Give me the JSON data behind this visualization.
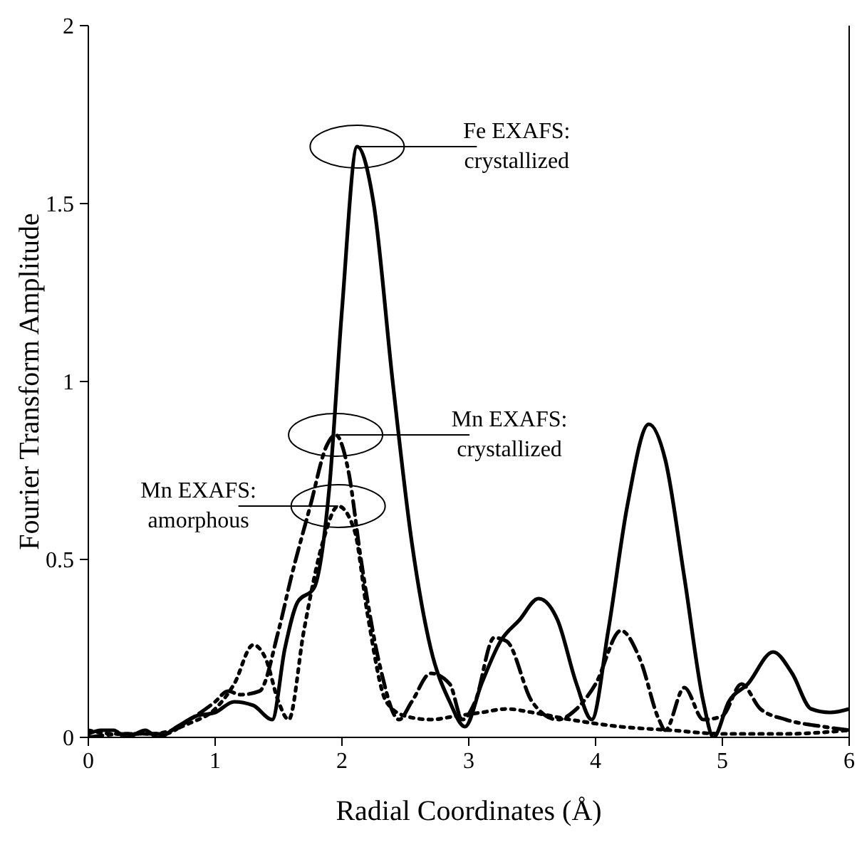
{
  "chart_data": {
    "type": "line",
    "xlabel": "Radial Coordinates (Å)",
    "ylabel": "Fourier Transform Amplitude",
    "xlim": [
      0,
      6
    ],
    "xticks": [
      0,
      1,
      2,
      3,
      4,
      5,
      6
    ],
    "ylim": [
      0,
      2
    ],
    "yticks": [
      0,
      0.5,
      1,
      1.5,
      2
    ],
    "grid": false,
    "legend": false,
    "marker": "none",
    "series": [
      {
        "color": "#000000",
        "line_style": "solid",
        "x": [
          0,
          0.1,
          0.2,
          0.3,
          0.45,
          0.55,
          0.7,
          0.85,
          1.0,
          1.15,
          1.3,
          1.45,
          1.55,
          1.65,
          1.78,
          1.9,
          2.0,
          2.12,
          2.25,
          2.4,
          2.55,
          2.7,
          2.85,
          2.97,
          3.1,
          3.25,
          3.4,
          3.55,
          3.7,
          3.85,
          3.97,
          4.1,
          4.25,
          4.42,
          4.55,
          4.7,
          4.85,
          4.93,
          5.05,
          5.2,
          5.4,
          5.55,
          5.7,
          5.85,
          6.0
        ],
        "values": [
          0.01,
          0.02,
          0.02,
          0.0,
          0.02,
          0.0,
          0.03,
          0.06,
          0.07,
          0.1,
          0.09,
          0.05,
          0.25,
          0.38,
          0.42,
          0.7,
          1.2,
          1.66,
          1.5,
          1.0,
          0.55,
          0.25,
          0.1,
          0.03,
          0.15,
          0.27,
          0.33,
          0.39,
          0.33,
          0.15,
          0.05,
          0.3,
          0.65,
          0.88,
          0.78,
          0.45,
          0.1,
          0.0,
          0.1,
          0.15,
          0.24,
          0.18,
          0.08,
          0.07,
          0.08
        ]
      },
      {
        "color": "#000000",
        "line_style": "dashdot",
        "x": [
          0,
          0.3,
          0.6,
          0.8,
          1.0,
          1.1,
          1.2,
          1.35,
          1.5,
          1.6,
          1.75,
          1.88,
          1.95,
          2.05,
          2.15,
          2.3,
          2.45,
          2.55,
          2.7,
          2.85,
          2.95,
          3.05,
          3.2,
          3.3,
          3.5,
          3.7,
          3.85,
          4.0,
          4.2,
          4.35,
          4.5,
          4.55,
          4.7,
          4.85,
          5.0,
          5.15,
          5.3,
          5.5,
          5.8,
          6.0
        ],
        "values": [
          0.0,
          0.01,
          0.01,
          0.05,
          0.1,
          0.13,
          0.12,
          0.13,
          0.3,
          0.45,
          0.65,
          0.82,
          0.85,
          0.75,
          0.5,
          0.2,
          0.05,
          0.1,
          0.18,
          0.15,
          0.05,
          0.1,
          0.28,
          0.27,
          0.1,
          0.05,
          0.08,
          0.15,
          0.3,
          0.22,
          0.05,
          0.02,
          0.14,
          0.05,
          0.06,
          0.15,
          0.08,
          0.05,
          0.03,
          0.02
        ]
      },
      {
        "color": "#000000",
        "line_style": "dotted",
        "x": [
          0,
          0.2,
          0.5,
          0.8,
          1.0,
          1.15,
          1.3,
          1.4,
          1.5,
          1.58,
          1.7,
          1.85,
          1.97,
          2.1,
          2.2,
          2.35,
          2.5,
          2.7,
          2.9,
          3.1,
          3.3,
          3.5,
          3.8,
          4.2,
          4.6,
          5.0,
          5.5,
          6.0
        ],
        "values": [
          0.02,
          0.01,
          0.01,
          0.04,
          0.08,
          0.15,
          0.26,
          0.22,
          0.1,
          0.05,
          0.3,
          0.55,
          0.65,
          0.58,
          0.35,
          0.1,
          0.06,
          0.05,
          0.06,
          0.07,
          0.08,
          0.07,
          0.05,
          0.03,
          0.02,
          0.01,
          0.01,
          0.02
        ]
      }
    ],
    "annotations": [
      {
        "text": "Fe EXAFS:\ncrystallized",
        "x": 2.12,
        "y": 1.66
      },
      {
        "text": "Mn EXAFS:\ncrystallized",
        "x": 1.95,
        "y": 0.85
      },
      {
        "text": "Mn EXAFS:\namorphous",
        "x": 1.97,
        "y": 0.65
      }
    ]
  }
}
